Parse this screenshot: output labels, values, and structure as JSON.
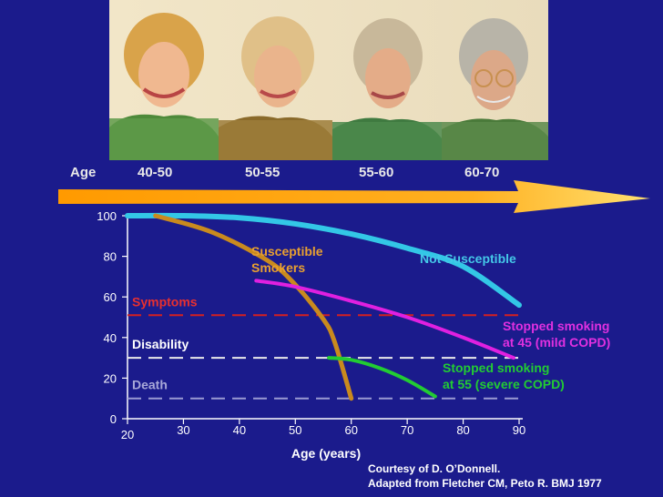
{
  "age_label": "Age",
  "age_groups": [
    "40-50",
    "50-55",
    "55-60",
    "60-70"
  ],
  "photo_description_icons": [
    "woman-portrait-1-icon",
    "woman-portrait-2-icon",
    "woman-portrait-3-icon",
    "woman-portrait-4-icon"
  ],
  "courtesy": {
    "line1": "Courtesy of D. O’Donnell.",
    "line2": "Adapted from Fletcher CM, Peto R. BMJ 1977"
  },
  "chart_data": {
    "type": "line",
    "title": "",
    "xlabel": "Age (years)",
    "ylabel": "",
    "xlim": [
      20,
      90
    ],
    "ylim": [
      0,
      100
    ],
    "x_ticks": [
      20,
      30,
      40,
      50,
      60,
      70,
      80,
      90
    ],
    "y_ticks": [
      0,
      20,
      40,
      60,
      80,
      100
    ],
    "series": [
      {
        "name": "Not Susceptible",
        "color": "#33c7e6",
        "points": [
          [
            20,
            100
          ],
          [
            30,
            100
          ],
          [
            40,
            99
          ],
          [
            50,
            96
          ],
          [
            60,
            91
          ],
          [
            70,
            84
          ],
          [
            80,
            75
          ],
          [
            90,
            56
          ]
        ]
      },
      {
        "name": "Susceptible Smokers",
        "color": "#c98a1e",
        "points": [
          [
            25,
            100
          ],
          [
            35,
            92
          ],
          [
            45,
            78
          ],
          [
            50,
            66
          ],
          [
            55,
            49
          ],
          [
            57,
            38
          ],
          [
            60,
            10
          ]
        ]
      },
      {
        "name": "Stopped smoking at 45 (mild COPD)",
        "color": "#e020e0",
        "points": [
          [
            43,
            68
          ],
          [
            50,
            65
          ],
          [
            60,
            58
          ],
          [
            70,
            50
          ],
          [
            80,
            40
          ],
          [
            89,
            30
          ]
        ]
      },
      {
        "name": "Stopped smoking at 55 (severe COPD)",
        "color": "#22cc33",
        "points": [
          [
            56,
            30
          ],
          [
            60,
            29
          ],
          [
            65,
            25
          ],
          [
            70,
            19
          ],
          [
            75,
            11
          ]
        ]
      }
    ],
    "thresholds": [
      {
        "label": "Symptoms",
        "y": 51,
        "color": "#d42020",
        "label_color": "#e83030"
      },
      {
        "label": "Disability",
        "y": 30,
        "color": "#eaeaea",
        "label_color": "#ffffff"
      },
      {
        "label": "Death",
        "y": 10,
        "color": "#9a9ad2",
        "label_color": "#a8a8d8"
      }
    ],
    "annotations": [
      {
        "key": "susceptible",
        "lines": [
          "Susceptible",
          "Smokers"
        ],
        "color": "#e8a030"
      },
      {
        "key": "not_susceptible",
        "lines": [
          "Not Susceptible"
        ],
        "color": "#44c8e8"
      },
      {
        "key": "stopped45",
        "lines": [
          "Stopped smoking",
          "at 45 (mild COPD)"
        ],
        "color": "#e030e0"
      },
      {
        "key": "stopped55",
        "lines": [
          "Stopped smoking",
          "at 55 (severe COPD)"
        ],
        "color": "#22cc33"
      }
    ]
  }
}
